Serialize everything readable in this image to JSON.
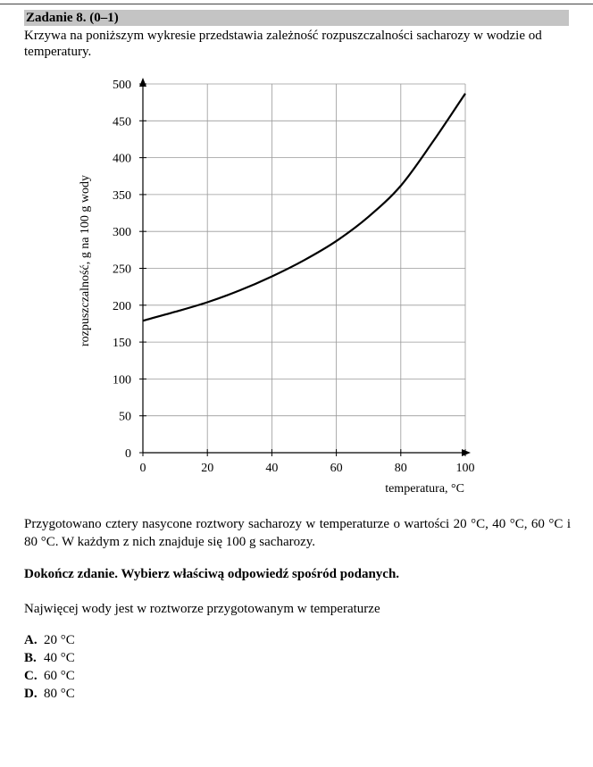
{
  "task": {
    "header": "Zadanie 8. (0–1)",
    "intro": "Krzywa na poniższym wykresie przedstawia zależność rozpuszczalności sacharozy w wodzie od temperatury."
  },
  "chart_data": {
    "type": "line",
    "title": "",
    "xlabel": "temperatura, °C",
    "ylabel": "rozpuszczalność, g na 100 g wody",
    "xlim": [
      0,
      100
    ],
    "ylim": [
      0,
      500
    ],
    "x_ticks": [
      0,
      20,
      40,
      60,
      80,
      100
    ],
    "y_ticks": [
      0,
      50,
      100,
      150,
      200,
      250,
      300,
      350,
      400,
      450,
      500
    ],
    "x_tick_labels": [
      "0",
      "20",
      "40",
      "60",
      "80",
      "100"
    ],
    "y_tick_labels": [
      "0",
      "50",
      "100",
      "150",
      "200",
      "250",
      "300",
      "350",
      "400",
      "450",
      "500"
    ],
    "grid": true,
    "series": [
      {
        "x": [
          0,
          10,
          20,
          30,
          40,
          50,
          60,
          70,
          80,
          90,
          100
        ],
        "y": [
          179,
          191,
          204,
          220,
          239,
          261,
          287,
          320,
          362,
          422,
          487
        ]
      }
    ]
  },
  "body": {
    "paragraph1": "Przygotowano cztery nasycone roztwory sacharozy w temperaturze o wartości 20 °C, 40 °C, 60 °C i 80 °C. W każdym z nich znajduje się 100 g sacharozy.",
    "instruction": "Dokończ zdanie. Wybierz właściwą odpowiedź spośród podanych.",
    "question": "Najwięcej wody jest w roztworze przygotowanym w temperaturze"
  },
  "options": [
    {
      "letter": "A.",
      "text": "20 °C"
    },
    {
      "letter": "B.",
      "text": "40 °C"
    },
    {
      "letter": "C.",
      "text": "60 °C"
    },
    {
      "letter": "D.",
      "text": "80 °C"
    }
  ]
}
